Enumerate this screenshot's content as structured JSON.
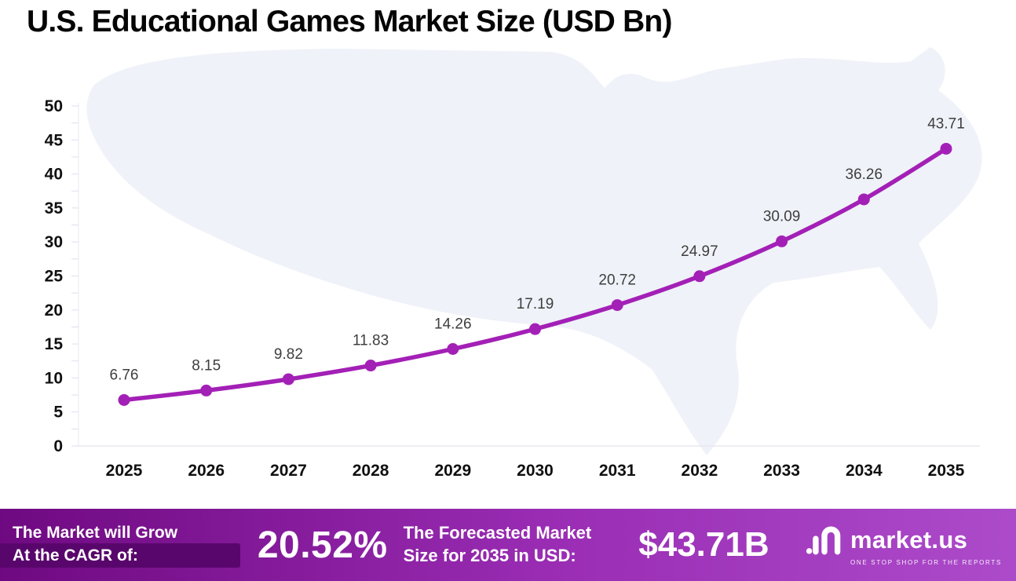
{
  "title": "U.S. Educational Games Market Size (USD Bn)",
  "chart_data": {
    "type": "line",
    "title": "U.S. Educational Games Market Size (USD Bn)",
    "categories": [
      "2025",
      "2026",
      "2027",
      "2028",
      "2029",
      "2030",
      "2031",
      "2032",
      "2033",
      "2034",
      "2035"
    ],
    "values": [
      6.76,
      8.15,
      9.82,
      11.83,
      14.26,
      17.19,
      20.72,
      24.97,
      30.09,
      36.26,
      43.71
    ],
    "xlabel": "",
    "ylabel": "",
    "ylim": [
      0,
      50
    ],
    "ytick_step": 5,
    "grid": false,
    "legend": "none",
    "line_color": "#A320B6"
  },
  "colors": {
    "title_text": "#050505",
    "data_label_text": "#3E3E3E",
    "footer_gradient_start": "#6F0981",
    "footer_gradient_mid": "#9A2DB4",
    "footer_gradient_end": "#AC4BCA",
    "ribbon": "#59066C",
    "map_fill": "#EAEDF6"
  },
  "footer": {
    "cagr_label_line1": "The Market will Grow",
    "cagr_label_line2": "At the CAGR of:",
    "cagr_value": "20.52%",
    "forecast_label_line1": "The Forecasted Market",
    "forecast_label_line2": "Size for 2035 in USD:",
    "forecast_value": "$43.71B",
    "brand": "market.us",
    "tagline": "ONE STOP SHOP FOR THE REPORTS"
  }
}
